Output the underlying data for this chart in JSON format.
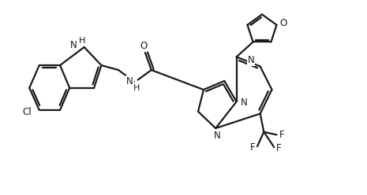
{
  "bg_color": "#ffffff",
  "line_color": "#1a1a1a",
  "line_width": 1.6,
  "font_size": 8.5,
  "figsize": [
    4.65,
    2.48
  ],
  "dpi": 100,
  "xlim": [
    0,
    10
  ],
  "ylim": [
    0,
    5.33
  ]
}
